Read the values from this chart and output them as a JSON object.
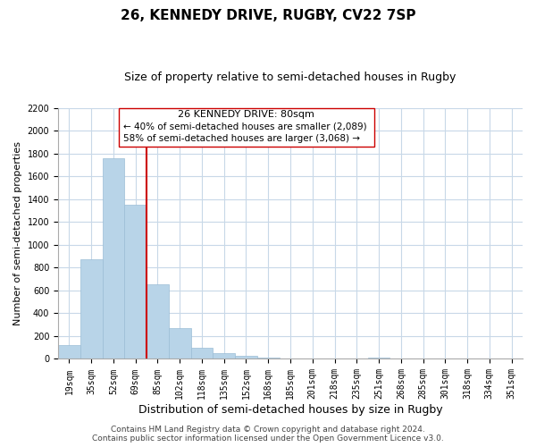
{
  "title": "26, KENNEDY DRIVE, RUGBY, CV22 7SP",
  "subtitle": "Size of property relative to semi-detached houses in Rugby",
  "xlabel": "Distribution of semi-detached houses by size in Rugby",
  "ylabel": "Number of semi-detached properties",
  "bar_labels": [
    "19sqm",
    "35sqm",
    "52sqm",
    "69sqm",
    "85sqm",
    "102sqm",
    "118sqm",
    "135sqm",
    "152sqm",
    "168sqm",
    "185sqm",
    "201sqm",
    "218sqm",
    "235sqm",
    "251sqm",
    "268sqm",
    "285sqm",
    "301sqm",
    "318sqm",
    "334sqm",
    "351sqm"
  ],
  "bar_values": [
    120,
    870,
    1760,
    1350,
    650,
    270,
    100,
    50,
    30,
    15,
    0,
    0,
    0,
    0,
    15,
    0,
    0,
    0,
    0,
    0,
    0
  ],
  "bar_color": "#b8d4e8",
  "bar_edge_color": "#9bbdd6",
  "vline_color": "#cc0000",
  "vline_x_index": 3.5,
  "ylim": [
    0,
    2200
  ],
  "yticks": [
    0,
    200,
    400,
    600,
    800,
    1000,
    1200,
    1400,
    1600,
    1800,
    2000,
    2200
  ],
  "annotation_title": "26 KENNEDY DRIVE: 80sqm",
  "annotation_line1": "← 40% of semi-detached houses are smaller (2,089)",
  "annotation_line2": "58% of semi-detached houses are larger (3,068) →",
  "footer_line1": "Contains HM Land Registry data © Crown copyright and database right 2024.",
  "footer_line2": "Contains public sector information licensed under the Open Government Licence v3.0.",
  "background_color": "#ffffff",
  "grid_color": "#c8d8e8",
  "title_fontsize": 11,
  "subtitle_fontsize": 9,
  "xlabel_fontsize": 9,
  "ylabel_fontsize": 8,
  "tick_fontsize": 7,
  "footer_fontsize": 6.5,
  "ann_title_fontsize": 8,
  "ann_body_fontsize": 7.5
}
